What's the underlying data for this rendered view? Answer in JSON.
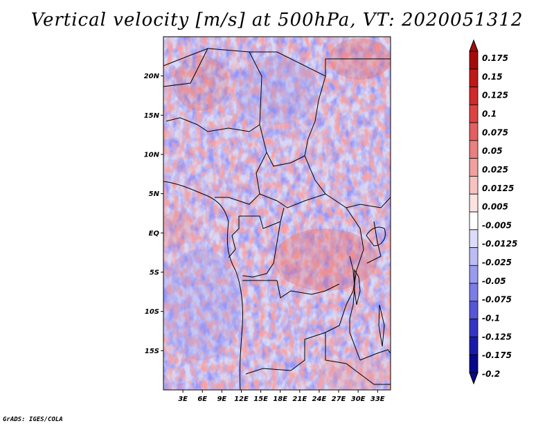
{
  "title": "Vertical velocity [m/s] at 500hPa, VT: 2020051312",
  "footer": "GrADS: IGES/COLA",
  "map": {
    "lat_labels": [
      "20N",
      "15N",
      "10N",
      "5N",
      "EQ",
      "5S",
      "10S",
      "15S"
    ],
    "lon_labels": [
      "3E",
      "6E",
      "9E",
      "12E",
      "15E",
      "18E",
      "21E",
      "24E",
      "27E",
      "30E",
      "33E"
    ],
    "lat_range": [
      -20,
      25
    ],
    "lon_range": [
      0,
      35
    ]
  },
  "colorbar": {
    "labels": [
      "0.175",
      "0.15",
      "0.125",
      "0.1",
      "0.075",
      "0.05",
      "0.025",
      "0.0125",
      "0.005",
      "-0.005",
      "-0.0125",
      "-0.025",
      "-0.05",
      "-0.075",
      "-0.1",
      "-0.125",
      "-0.175",
      "-0.2"
    ],
    "colors": [
      "#a50a0a",
      "#c01818",
      "#d02a2a",
      "#dc4444",
      "#e26060",
      "#ea8080",
      "#f0a0a0",
      "#f6c2c2",
      "#fce2e2",
      "#ffffff",
      "#dcdcfa",
      "#bcbcf4",
      "#9a9aee",
      "#7c7ce4",
      "#5656d8",
      "#3434c4",
      "#1a1aa8",
      "#08088a"
    ]
  }
}
